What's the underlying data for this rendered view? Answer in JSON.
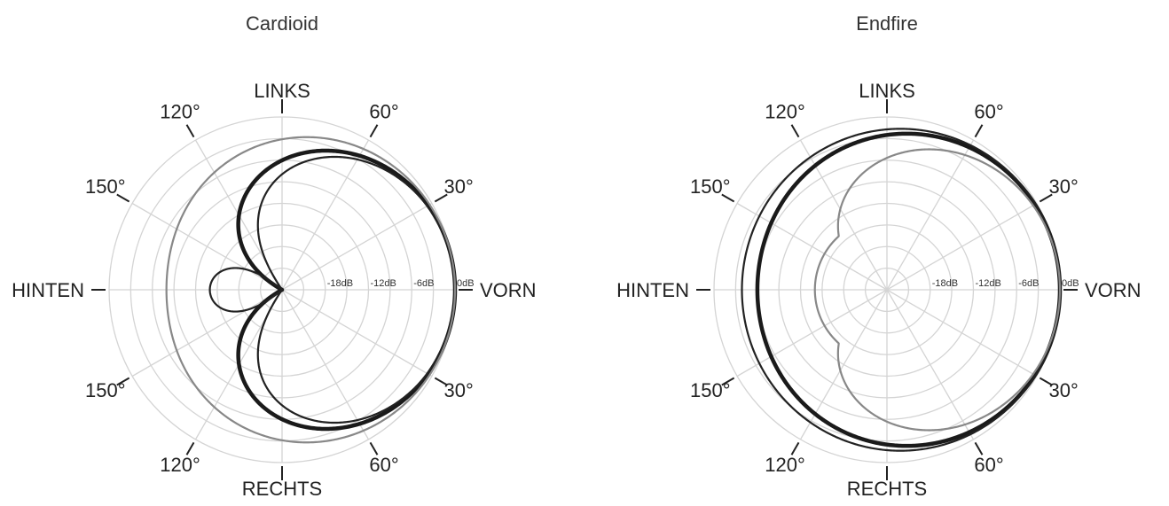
{
  "chart_data": [
    {
      "type": "polar",
      "title": "Cardioid",
      "direction_labels": {
        "front": "VORN",
        "back": "HINTEN",
        "top": "LINKS",
        "bottom": "RECHTS"
      },
      "angle_labels_top": [
        "30°",
        "60°",
        "120°",
        "150°"
      ],
      "angle_labels_bottom": [
        "30°",
        "60°",
        "120°",
        "150°"
      ],
      "radial_ticks": [
        "0dB",
        "-6dB",
        "-12dB",
        "-18dB"
      ],
      "db_range": [
        -24,
        0
      ],
      "grid": true,
      "series": [
        {
          "pattern": "first_order",
          "A": 0.5,
          "floor_db": -24,
          "color": "#1a1a1a",
          "weight": "thick"
        },
        {
          "pattern": "first_order",
          "A": 0.4,
          "floor_db": -24,
          "color": "#222222",
          "weight": "thin"
        },
        {
          "pattern": "first_order",
          "A": 0.7,
          "floor_db": -24,
          "color": "#888888",
          "weight": "thin"
        }
      ]
    },
    {
      "type": "polar",
      "title": "Endfire",
      "direction_labels": {
        "front": "VORN",
        "back": "HINTEN",
        "top": "LINKS",
        "bottom": "RECHTS"
      },
      "angle_labels_top": [
        "30°",
        "60°",
        "120°",
        "150°"
      ],
      "angle_labels_bottom": [
        "30°",
        "60°",
        "120°",
        "150°"
      ],
      "radial_ticks": [
        "0dB",
        "-6dB",
        "-12dB",
        "-18dB"
      ],
      "db_range": [
        -24,
        0
      ],
      "grid": true,
      "series": [
        {
          "pattern": "first_order",
          "A": 0.75,
          "floor_db": -24,
          "color": "#1a1a1a",
          "weight": "thick"
        },
        {
          "pattern": "first_order",
          "A": 0.82,
          "floor_db": -24,
          "color": "#222222",
          "weight": "thin"
        },
        {
          "pattern": "first_order",
          "A": 0.52,
          "floor_db": -14,
          "color": "#888888",
          "weight": "thin"
        }
      ]
    }
  ]
}
